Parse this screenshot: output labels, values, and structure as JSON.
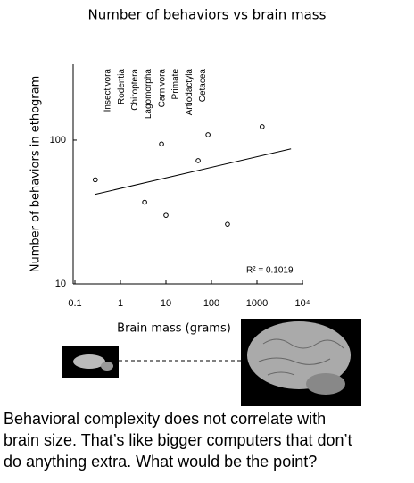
{
  "chart_data": {
    "type": "scatter",
    "title": "Number of behaviors vs brain mass",
    "xlabel": "Brain mass (grams)",
    "ylabel": "Number of behaviors in ethogram",
    "x": [
      0.28,
      3.4,
      8.0,
      10,
      51,
      84,
      225,
      1300
    ],
    "y": [
      53,
      37,
      94,
      30,
      72,
      109,
      26,
      124
    ],
    "color": "#000000",
    "trendline": {
      "x": [
        0.28,
        5600
      ],
      "y": [
        42,
        87
      ]
    },
    "xscale": "log",
    "yscale": "log",
    "xlim": [
      0.1,
      10000
    ],
    "ylim": [
      10,
      337
    ],
    "xticks": [
      0.1,
      1,
      10,
      100,
      1000,
      {
        "value": 10000,
        "label": "10⁴"
      }
    ],
    "yticks": [
      10,
      100
    ],
    "orders": [
      "Insectivora",
      "Rodentia",
      "Chiroptera",
      "Lagomorpha",
      "Carnivora",
      "Primate",
      "Artiodactyla",
      "Cetacea"
    ],
    "annotation": "R² = 0.1019"
  },
  "caption": [
    "Behavioral complexity does not correlate with",
    "brain size. That’s like bigger computers that don’t",
    "do anything extra. What would be the point?"
  ]
}
